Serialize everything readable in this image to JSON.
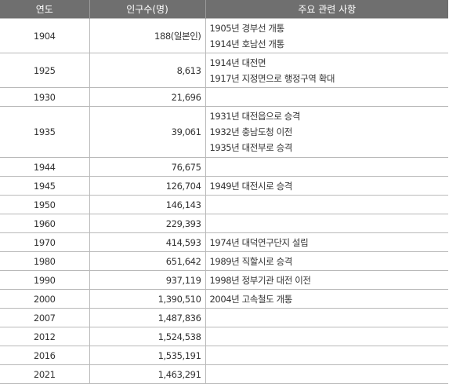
{
  "headers": [
    "연도",
    "인구수(명)",
    "주요 관련 사항"
  ],
  "rows": [
    {
      "year": "1904",
      "pop": "188(일본인)",
      "notes": [
        "1905년 경부선 개통",
        "1914년 호남선 개통"
      ]
    },
    {
      "year": "1925",
      "pop": "8,613",
      "notes": [
        "1914년 대전면",
        "1917년 지정면으로 행정구역 확대"
      ]
    },
    {
      "year": "1930",
      "pop": "21,696",
      "notes": []
    },
    {
      "year": "1935",
      "pop": "39,061",
      "notes": [
        "1931년 대전읍으로 승격",
        "1932년 충남도청 이전",
        "1935년 대전부로 승격"
      ]
    },
    {
      "year": "1944",
      "pop": "76,675",
      "notes": []
    },
    {
      "year": "1945",
      "pop": "126,704",
      "notes": [
        "1949년 대전시로 승격"
      ]
    },
    {
      "year": "1950",
      "pop": "146,143",
      "notes": []
    },
    {
      "year": "1960",
      "pop": "229,393",
      "notes": []
    },
    {
      "year": "1970",
      "pop": "414,593",
      "notes": [
        "1974년 대덕연구단지 설립"
      ]
    },
    {
      "year": "1980",
      "pop": "651,642",
      "notes": [
        "1989년 직할시로 승격"
      ]
    },
    {
      "year": "1990",
      "pop": "937,119",
      "notes": [
        "1998년 정부기관 대전 이전"
      ]
    },
    {
      "year": "2000",
      "pop": "1,390,510",
      "notes": [
        "2004년 고속철도 개통"
      ]
    },
    {
      "year": "2007",
      "pop": "1,487,836",
      "notes": []
    },
    {
      "year": "2012",
      "pop": "1,524,538",
      "notes": []
    },
    {
      "year": "2016",
      "pop": "1,535,191",
      "notes": []
    },
    {
      "year": "2021",
      "pop": "1,463,291",
      "notes": []
    }
  ]
}
